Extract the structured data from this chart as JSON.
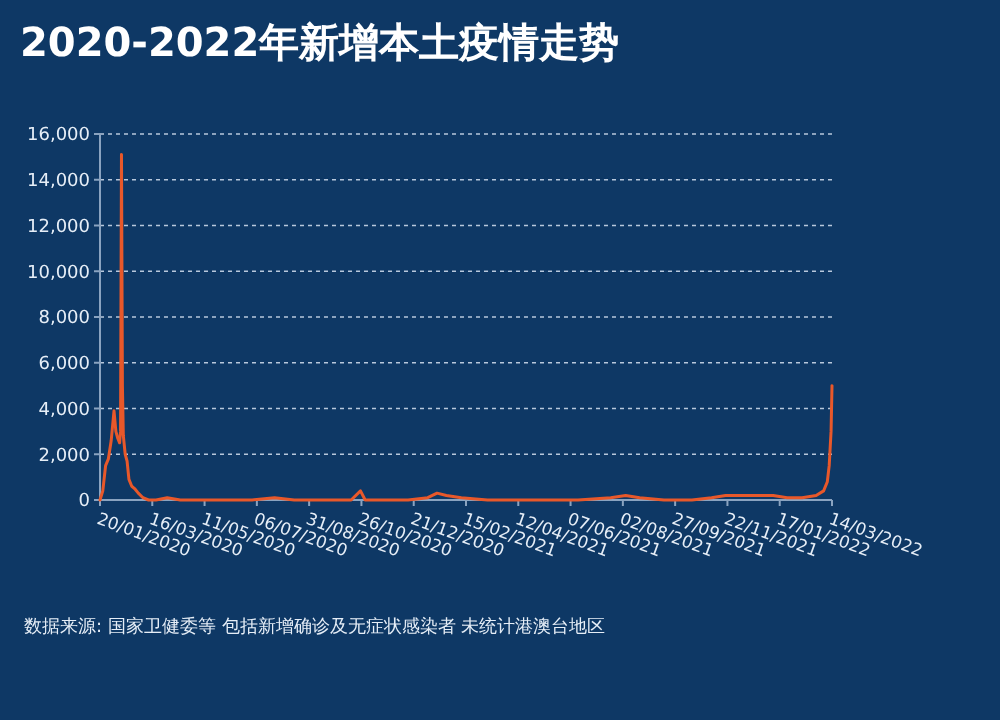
{
  "chart_data": {
    "type": "line",
    "title": "2020-2022年新增本土疫情走势",
    "x": [
      "2020-01-20",
      "2020-01-23",
      "2020-01-26",
      "2020-01-29",
      "2020-02-01",
      "2020-02-04",
      "2020-02-06",
      "2020-02-08",
      "2020-02-10",
      "2020-02-11",
      "2020-02-12",
      "2020-02-13",
      "2020-02-14",
      "2020-02-16",
      "2020-02-18",
      "2020-02-20",
      "2020-02-23",
      "2020-02-26",
      "2020-03-01",
      "2020-03-06",
      "2020-03-12",
      "2020-03-20",
      "2020-04-01",
      "2020-04-15",
      "2020-05-01",
      "2020-06-01",
      "2020-06-15",
      "2020-07-01",
      "2020-07-25",
      "2020-08-15",
      "2020-09-15",
      "2020-10-15",
      "2020-10-25",
      "2020-10-30",
      "2020-11-15",
      "2020-12-15",
      "2021-01-05",
      "2021-01-15",
      "2021-01-25",
      "2021-02-10",
      "2021-03-10",
      "2021-04-15",
      "2021-05-20",
      "2021-06-15",
      "2021-07-20",
      "2021-08-05",
      "2021-08-20",
      "2021-09-15",
      "2021-10-15",
      "2021-11-05",
      "2021-11-20",
      "2021-12-10",
      "2021-12-25",
      "2022-01-10",
      "2022-01-25",
      "2022-02-10",
      "2022-02-25",
      "2022-03-05",
      "2022-03-09",
      "2022-03-11",
      "2022-03-13",
      "2022-03-14"
    ],
    "series": [
      {
        "color": "#e8582a",
        "values": [
          0,
          400,
          1500,
          1800,
          2600,
          3900,
          3000,
          2700,
          2500,
          3000,
          15100,
          5000,
          2800,
          2000,
          1700,
          900,
          600,
          500,
          300,
          100,
          0,
          0,
          100,
          0,
          0,
          0,
          0,
          0,
          100,
          0,
          0,
          0,
          400,
          0,
          0,
          0,
          100,
          300,
          200,
          100,
          0,
          0,
          0,
          0,
          100,
          200,
          100,
          0,
          0,
          100,
          200,
          200,
          200,
          200,
          100,
          100,
          200,
          400,
          800,
          1500,
          3000,
          5000
        ]
      }
    ],
    "xlim": [
      "2020-01-20",
      "2022-03-14"
    ],
    "xticks": [
      {
        "value": "2020-01-20",
        "label": "20/01/2020"
      },
      {
        "value": "2020-03-16",
        "label": "16/03/2020"
      },
      {
        "value": "2020-05-11",
        "label": "11/05/2020"
      },
      {
        "value": "2020-07-06",
        "label": "06/07/2020"
      },
      {
        "value": "2020-08-31",
        "label": "31/08/2020"
      },
      {
        "value": "2020-10-26",
        "label": "26/10/2020"
      },
      {
        "value": "2020-12-21",
        "label": "21/12/2020"
      },
      {
        "value": "2021-02-15",
        "label": "15/02/2021"
      },
      {
        "value": "2021-04-12",
        "label": "12/04/2021"
      },
      {
        "value": "2021-06-07",
        "label": "07/06/2021"
      },
      {
        "value": "2021-08-02",
        "label": "02/08/2021"
      },
      {
        "value": "2021-09-27",
        "label": "27/09/2021"
      },
      {
        "value": "2021-11-22",
        "label": "22/11/2021"
      },
      {
        "value": "2022-01-17",
        "label": "17/01/2022"
      },
      {
        "value": "2022-03-14",
        "label": "14/03/2022"
      }
    ],
    "ylim": [
      0,
      16000
    ],
    "yticks": [
      {
        "value": 0,
        "label": "0"
      },
      {
        "value": 2000,
        "label": "2,000"
      },
      {
        "value": 4000,
        "label": "4,000"
      },
      {
        "value": 6000,
        "label": "6,000"
      },
      {
        "value": 8000,
        "label": "8,000"
      },
      {
        "value": 10000,
        "label": "10,000"
      },
      {
        "value": 12000,
        "label": "12,000"
      },
      {
        "value": 14000,
        "label": "14,000"
      },
      {
        "value": 16000,
        "label": "16,000"
      }
    ],
    "grid": "y",
    "line_style": "solid",
    "annotations": [
      "数据来源: 国家卫健委等 包括新增确诊及无症状感染者 未统计港澳台地区"
    ]
  }
}
